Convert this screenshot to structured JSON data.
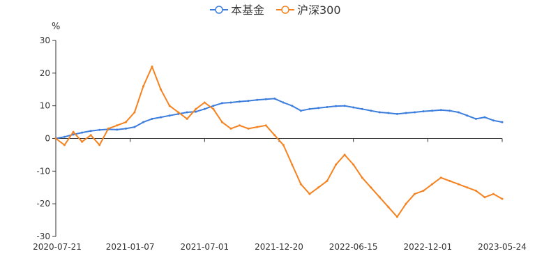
{
  "chart_data": {
    "type": "line",
    "title": "",
    "ylabel": "%",
    "xlabel": "",
    "ylim": [
      -30,
      30
    ],
    "yticks": [
      30,
      20,
      10,
      0,
      -10,
      -20,
      -30
    ],
    "grid": false,
    "legend_position": "top-center",
    "x_tick_labels": [
      "2020-07-21",
      "2021-01-07",
      "2021-07-01",
      "2021-12-20",
      "2022-06-15",
      "2022-12-01",
      "2023-05-24"
    ],
    "x_ticks_total": 7,
    "series": [
      {
        "name": "本基金",
        "color": "#3b7ddd",
        "values": [
          0,
          0.5,
          1.2,
          1.8,
          2.3,
          2.6,
          2.8,
          2.7,
          3.0,
          3.5,
          5.0,
          6.0,
          6.5,
          7.0,
          7.5,
          8.0,
          8.2,
          9.0,
          10.0,
          10.8,
          11.0,
          11.3,
          11.5,
          11.8,
          12.0,
          12.2,
          11.0,
          10.0,
          8.5,
          9.0,
          9.3,
          9.6,
          9.9,
          10.0,
          9.5,
          9.0,
          8.5,
          8.0,
          7.8,
          7.5,
          7.8,
          8.0,
          8.3,
          8.5,
          8.7,
          8.5,
          8.0,
          7.0,
          6.0,
          6.5,
          5.5,
          5.0
        ]
      },
      {
        "name": "沪深300",
        "color": "#f5821f",
        "values": [
          0,
          -2,
          2,
          -1,
          1,
          -2,
          3,
          4,
          5,
          8,
          16,
          22,
          15,
          10,
          8,
          6,
          9,
          11,
          9,
          5,
          3,
          4,
          3,
          3.5,
          4,
          1,
          -2,
          -8,
          -14,
          -17,
          -15,
          -13,
          -8,
          -5,
          -8,
          -12,
          -15,
          -18,
          -21,
          -24,
          -20,
          -17,
          -16,
          -14,
          -12,
          -13,
          -14,
          -15,
          -16,
          -18,
          -17,
          -18.5
        ]
      }
    ]
  }
}
